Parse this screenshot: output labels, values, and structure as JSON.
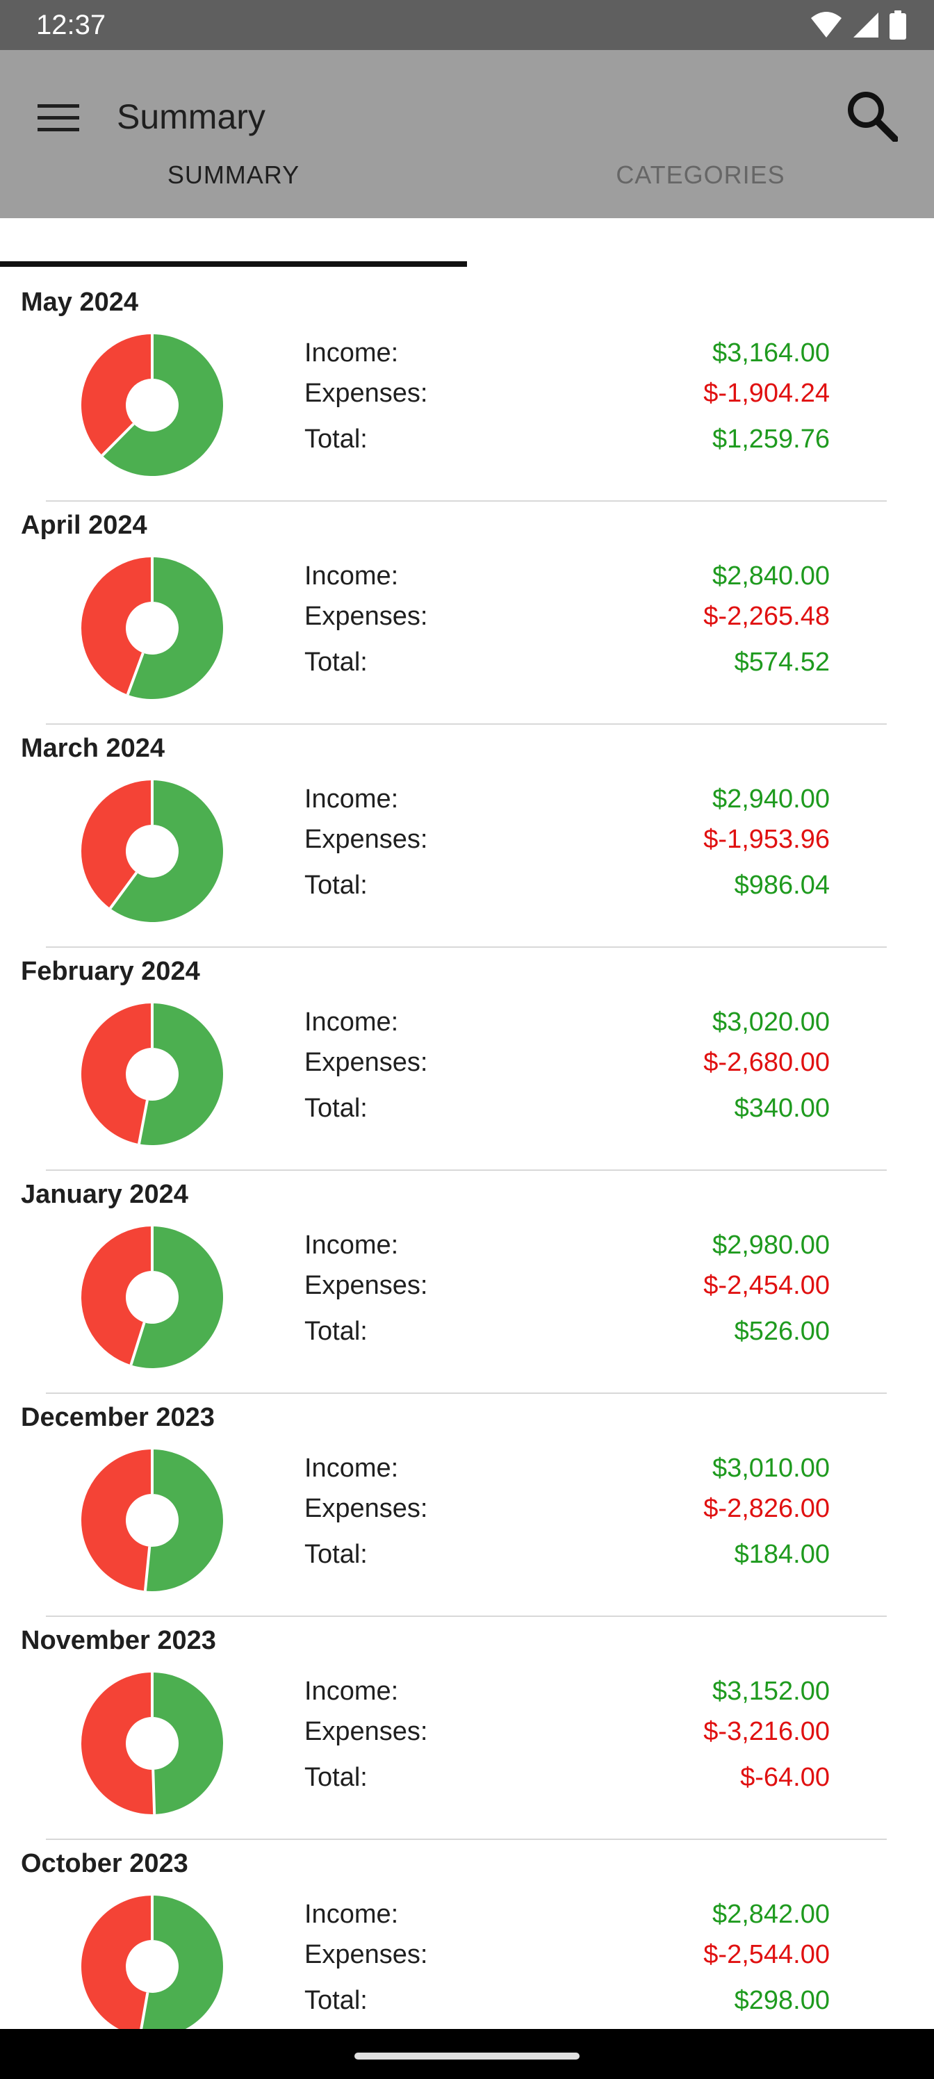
{
  "status_bar": {
    "time": "12:37",
    "icons": [
      "wifi-icon",
      "signal-icon",
      "battery-icon"
    ]
  },
  "app_bar": {
    "title": "Summary",
    "menu_icon": "menu-icon",
    "search_icon": "search-icon"
  },
  "tabs": [
    {
      "label": "SUMMARY",
      "active": true
    },
    {
      "label": "CATEGORIES",
      "active": false
    }
  ],
  "labels": {
    "income": "Income:",
    "expenses": "Expenses:",
    "total": "Total:"
  },
  "colors": {
    "income_green": "#4caf50",
    "expense_red": "#f44336",
    "positive_text": "#1e9a1e",
    "negative_text": "#e01010"
  },
  "months": [
    {
      "title": "May 2024",
      "income": "$3,164.00",
      "expenses": "$-1,904.24",
      "total": "$1,259.76",
      "total_negative": false,
      "income_value": 3164.0,
      "expense_value": 1904.24
    },
    {
      "title": "April 2024",
      "income": "$2,840.00",
      "expenses": "$-2,265.48",
      "total": "$574.52",
      "total_negative": false,
      "income_value": 2840.0,
      "expense_value": 2265.48
    },
    {
      "title": "March 2024",
      "income": "$2,940.00",
      "expenses": "$-1,953.96",
      "total": "$986.04",
      "total_negative": false,
      "income_value": 2940.0,
      "expense_value": 1953.96
    },
    {
      "title": "February 2024",
      "income": "$3,020.00",
      "expenses": "$-2,680.00",
      "total": "$340.00",
      "total_negative": false,
      "income_value": 3020.0,
      "expense_value": 2680.0
    },
    {
      "title": "January 2024",
      "income": "$2,980.00",
      "expenses": "$-2,454.00",
      "total": "$526.00",
      "total_negative": false,
      "income_value": 2980.0,
      "expense_value": 2454.0
    },
    {
      "title": "December 2023",
      "income": "$3,010.00",
      "expenses": "$-2,826.00",
      "total": "$184.00",
      "total_negative": false,
      "income_value": 3010.0,
      "expense_value": 2826.0
    },
    {
      "title": "November 2023",
      "income": "$3,152.00",
      "expenses": "$-3,216.00",
      "total": "$-64.00",
      "total_negative": true,
      "income_value": 3152.0,
      "expense_value": 3216.0
    },
    {
      "title": "October 2023",
      "income": "$2,842.00",
      "expenses": "$-2,544.00",
      "total": "$298.00",
      "total_negative": false,
      "income_value": 2842.0,
      "expense_value": 2544.0
    }
  ]
}
